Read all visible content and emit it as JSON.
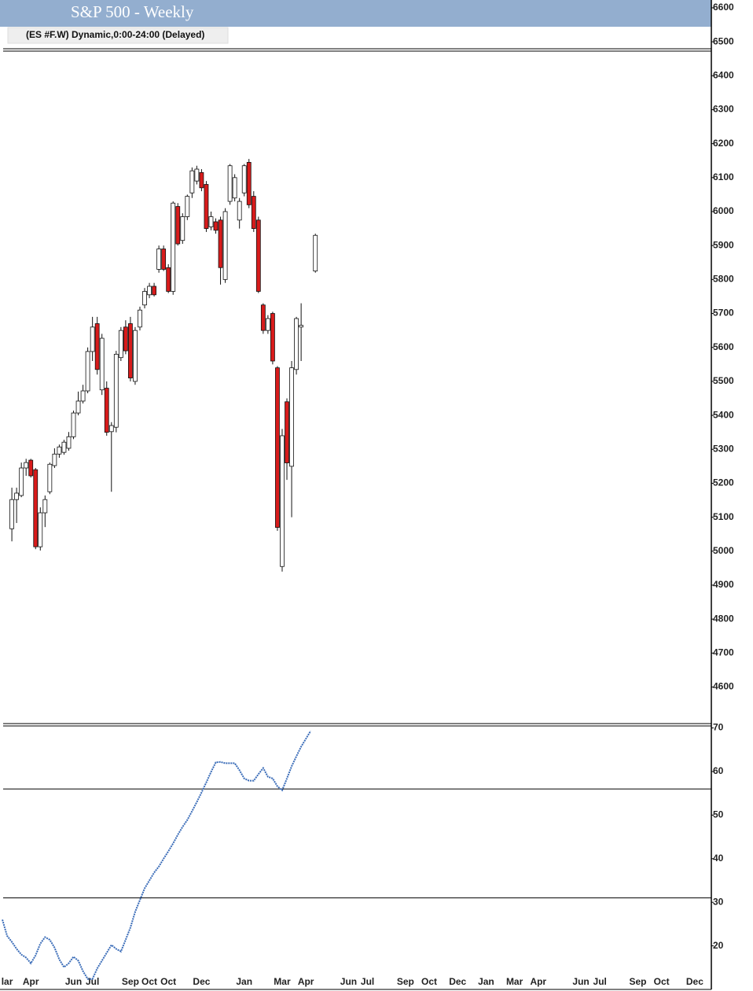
{
  "chart_data": {
    "type": "candlestick",
    "title": "S&P 500 - Weekly",
    "subtitle": "(ES #F.W) Dynamic,0:00-24:00 (Delayed)",
    "up_color": "#ffffff",
    "down_color": "#d81b1b",
    "outline_color": "#111111",
    "header_color": "#93aecf",
    "categories": [
      null,
      "lar",
      null,
      null,
      null,
      null,
      "Apr",
      null,
      null,
      null,
      null,
      null,
      null,
      null,
      null,
      "Jun",
      null,
      null,
      null,
      "Jul",
      null,
      null,
      null,
      null,
      null,
      null,
      null,
      "Sep",
      null,
      null,
      null,
      "Oct",
      null,
      null,
      null,
      "Oct",
      null,
      null,
      null,
      null,
      null,
      null,
      "Dec",
      null,
      null,
      null,
      null,
      null,
      null,
      null,
      null,
      "Jan",
      null,
      null,
      null,
      null,
      null,
      null,
      null,
      "Mar",
      null,
      null,
      null,
      null,
      "Apr",
      null,
      null,
      null,
      null,
      null,
      null,
      null,
      null,
      "Jun",
      null,
      null,
      null,
      "Jul",
      null,
      null,
      null,
      null,
      null,
      null,
      null,
      "Sep",
      null,
      null,
      null,
      null,
      "Oct",
      null,
      null,
      null,
      null,
      null,
      "Dec",
      null,
      null,
      null,
      null,
      null,
      "Jan",
      null,
      null,
      null,
      null,
      null,
      "Mar",
      null,
      null,
      null,
      null,
      "Apr",
      null,
      null,
      null,
      null,
      null,
      null,
      null,
      null,
      "Jun",
      null,
      null,
      null,
      "Jul",
      null,
      null,
      null,
      null,
      null,
      null,
      null,
      "Sep",
      null,
      null,
      null,
      null,
      "Oct",
      null,
      null,
      null,
      null,
      null,
      null,
      "Dec",
      null,
      null,
      null
    ],
    "open": [
      null,
      null,
      5066,
      5152,
      5164,
      5245,
      5268,
      5240,
      5013,
      5113,
      5175,
      5252,
      5286,
      5291,
      5303,
      5337,
      5407,
      5442,
      5472,
      5588,
      5670,
      5475,
      5480,
      5352,
      5365,
      5570,
      5660,
      5670,
      5500,
      5660,
      5725,
      5755,
      5780,
      5830,
      5890,
      5835,
      5765,
      6015,
      5915,
      5985,
      6055,
      6090,
      6115,
      6080,
      5955,
      5970,
      5975,
      5800,
      6030,
      6040,
      5975,
      6055,
      6145,
      6045,
      5975,
      5725,
      5650,
      5700,
      5540,
      4955,
      5440,
      5250,
      5535,
      5660,
      null,
      null,
      5825,
      null,
      null,
      null,
      null,
      null,
      null,
      null,
      null,
      null,
      null,
      null,
      null,
      null,
      null,
      null,
      null,
      null,
      null,
      null,
      null,
      null,
      null,
      null,
      null,
      null,
      null,
      null,
      null,
      null,
      null,
      null,
      null,
      null,
      null,
      null,
      null,
      null,
      null,
      null,
      null,
      null,
      null,
      null,
      null,
      null,
      null,
      null,
      null,
      null,
      null,
      null,
      null,
      null,
      null,
      null,
      null,
      null,
      null,
      null,
      null,
      null,
      null,
      null,
      null,
      null,
      null,
      null,
      null,
      null,
      null,
      null,
      null,
      null,
      null,
      null,
      null,
      null,
      null,
      null,
      null,
      null,
      null,
      null
    ],
    "high": [
      null,
      null,
      5187,
      5187,
      5261,
      5272,
      5272,
      5245,
      5129,
      5164,
      5261,
      5303,
      5314,
      5328,
      5351,
      5414,
      5470,
      5490,
      5600,
      5690,
      5690,
      5640,
      5500,
      5380,
      5590,
      5660,
      5680,
      5690,
      5660,
      5720,
      5775,
      5790,
      5790,
      5900,
      5900,
      5845,
      6030,
      6025,
      5995,
      6050,
      6130,
      6135,
      6125,
      6090,
      6000,
      5980,
      5985,
      6010,
      6140,
      6110,
      6040,
      6140,
      6155,
      6060,
      5985,
      5730,
      5695,
      5705,
      5545,
      5360,
      5450,
      5560,
      5690,
      5730,
      null,
      null,
      5935,
      null,
      null,
      null,
      null,
      null,
      null,
      null,
      null,
      null,
      null,
      null,
      null,
      null,
      null,
      null,
      null,
      null,
      null,
      null,
      null,
      null,
      null,
      null,
      null,
      null,
      null,
      null,
      null,
      null,
      null,
      null,
      null,
      null,
      null,
      null,
      null,
      null,
      null,
      null,
      null,
      null,
      null,
      null,
      null,
      null,
      null,
      null,
      null,
      null,
      null,
      null,
      null,
      null,
      null,
      null,
      null,
      null,
      null,
      null,
      null,
      null,
      null,
      null,
      null,
      null,
      null,
      null,
      null,
      null,
      null,
      null,
      null,
      null,
      null,
      null,
      null,
      null,
      null,
      null,
      null,
      null,
      null,
      null
    ],
    "low": [
      null,
      null,
      5029,
      5083,
      5159,
      5222,
      5217,
      5006,
      5002,
      5071,
      5168,
      5245,
      5275,
      5284,
      5296,
      5330,
      5400,
      5435,
      5465,
      5560,
      5520,
      5460,
      5340,
      5175,
      5350,
      5560,
      5580,
      5500,
      5490,
      5650,
      5715,
      5745,
      5750,
      5820,
      5825,
      5760,
      5755,
      5900,
      5905,
      5975,
      6040,
      6080,
      6060,
      5940,
      5945,
      5935,
      5785,
      5790,
      6020,
      6030,
      5950,
      6045,
      6010,
      5940,
      5760,
      5640,
      5640,
      5550,
      5060,
      4940,
      5210,
      5100,
      5520,
      5560,
      null,
      null,
      5820,
      null,
      null,
      null,
      null,
      null,
      null,
      null,
      null,
      null,
      null,
      null,
      null,
      null,
      null,
      null,
      null,
      null,
      null,
      null,
      null,
      null,
      null,
      null,
      null,
      null,
      null,
      null,
      null,
      null,
      null,
      null,
      null,
      null,
      null,
      null,
      null,
      null,
      null,
      null,
      null,
      null,
      null,
      null,
      null,
      null,
      null,
      null,
      null,
      null,
      null,
      null,
      null,
      null,
      null,
      null,
      null,
      null,
      null,
      null,
      null,
      null,
      null,
      null,
      null,
      null,
      null,
      null,
      null,
      null,
      null,
      null,
      null,
      null,
      null,
      null,
      null,
      null,
      null,
      null,
      null,
      null,
      null,
      null
    ],
    "close": [
      null,
      null,
      5152,
      5171,
      5245,
      5261,
      5222,
      5013,
      5113,
      5152,
      5256,
      5286,
      5307,
      5321,
      5337,
      5407,
      5442,
      5472,
      5588,
      5660,
      5535,
      5627,
      5350,
      5370,
      5580,
      5650,
      5590,
      5510,
      5650,
      5710,
      5765,
      5780,
      5755,
      5890,
      5830,
      5765,
      6025,
      5905,
      5985,
      6045,
      6120,
      6125,
      6070,
      5950,
      5985,
      5945,
      5835,
      6000,
      6135,
      6100,
      6030,
      6135,
      6020,
      5950,
      5765,
      5650,
      5685,
      5560,
      5070,
      5340,
      5260,
      5540,
      5685,
      5665,
      null,
      null,
      5930,
      null,
      null,
      null,
      null,
      null,
      null,
      null,
      null,
      null,
      null,
      null,
      null,
      null,
      null,
      null,
      null,
      null,
      null,
      null,
      null,
      null,
      null,
      null,
      null,
      null,
      null,
      null,
      null,
      null,
      null,
      null,
      null,
      null,
      null,
      null,
      null,
      null,
      null,
      null,
      null,
      null,
      null,
      null,
      null,
      null,
      null,
      null,
      null,
      null,
      null,
      null,
      null,
      null,
      null,
      null,
      null,
      null,
      null,
      null,
      null,
      null,
      null,
      null,
      null,
      null,
      null,
      null,
      null,
      null,
      null,
      null,
      null,
      null,
      null,
      null,
      null,
      null,
      null,
      null,
      null,
      null,
      null,
      null
    ],
    "ylim": [
      4497,
      6623
    ],
    "yticks": [
      6600,
      6500,
      6400,
      6300,
      6200,
      6100,
      6000,
      5900,
      5800,
      5700,
      5600,
      5500,
      5400,
      5300,
      5200,
      5100,
      5000,
      4900,
      4800,
      4700,
      4600
    ],
    "indicator": {
      "type": "line",
      "color": "#3a6cb8",
      "ylim": [
        10,
        71
      ],
      "yticks": [
        70,
        60,
        50,
        40,
        30,
        20
      ],
      "reference_lines": [
        56,
        31
      ],
      "values": [
        26,
        22.3,
        20.9,
        19.3,
        18,
        17.3,
        16,
        17.8,
        20.5,
        22,
        21.4,
        19.6,
        16.9,
        15.1,
        16,
        17.5,
        16.6,
        14.2,
        12.4,
        12.4,
        14.8,
        16.6,
        18.4,
        20.2,
        19.3,
        18.7,
        21.4,
        24.2,
        27.8,
        30.5,
        33.2,
        35,
        36.8,
        38.2,
        40,
        41.7,
        43.5,
        45.5,
        47.3,
        48.9,
        50.9,
        53,
        55.2,
        57.5,
        59.9,
        62.1,
        62.2,
        61.9,
        61.9,
        61.9,
        60.3,
        58.4,
        57.9,
        57.9,
        59.4,
        60.8,
        58.8,
        58.4,
        56.6,
        55.7,
        58.4,
        61.2,
        63.5,
        65.7,
        67.5,
        69.3,
        null,
        null,
        null,
        null,
        null,
        null,
        null,
        null,
        null,
        null,
        null,
        null,
        null,
        null,
        null,
        null,
        null,
        null,
        null,
        null,
        null,
        null,
        null,
        null,
        null,
        null,
        null,
        null,
        null,
        null,
        null,
        null,
        null,
        null,
        null,
        null,
        null,
        null,
        null,
        null,
        null,
        null,
        null,
        null,
        null,
        null,
        null,
        null,
        null,
        null,
        null,
        null,
        null,
        null,
        null,
        null,
        null,
        null,
        null,
        null,
        null,
        null,
        null,
        null,
        null,
        null,
        null,
        null,
        null,
        null,
        null,
        null,
        null,
        null,
        null,
        null,
        null,
        null,
        null,
        null,
        null,
        null,
        null,
        null
      ]
    }
  }
}
